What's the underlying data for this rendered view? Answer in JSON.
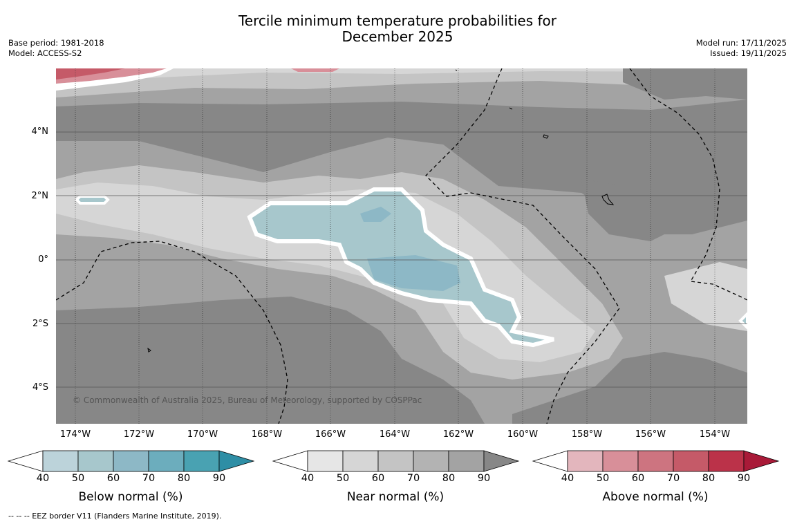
{
  "title_line1": "Tercile minimum temperature probabilities for",
  "title_line2": "December 2025",
  "meta_left": [
    "Base period: 1981-2018",
    "Model: ACCESS-S2"
  ],
  "meta_right": [
    "Model run: 17/11/2025",
    "Issued: 19/11/2025"
  ],
  "copyright": "© Commonwealth of Australia 2025, Bureau of Meteorology, supported by COSPPac",
  "footnote": "--  --  -- EEZ border V11 (Flanders Marine Institute, 2019).",
  "lat_ticks": [
    "4°N",
    "2°N",
    "0°",
    "2°S",
    "4°S"
  ],
  "lon_ticks": [
    "174°W",
    "172°W",
    "170°W",
    "168°W",
    "166°W",
    "164°W",
    "162°W",
    "160°W",
    "158°W",
    "156°W",
    "154°W"
  ],
  "colorbars": [
    {
      "title": "Below normal (%)",
      "labels": [
        "40",
        "50",
        "60",
        "70",
        "80",
        "90"
      ],
      "colors": [
        "#ffffff",
        "#bcd3da",
        "#a7c7cc",
        "#8db8c6",
        "#6cadbd",
        "#49a2b2",
        "#2e8ea5"
      ]
    },
    {
      "title": "Near normal (%)",
      "labels": [
        "40",
        "50",
        "60",
        "70",
        "80",
        "90"
      ],
      "colors": [
        "#ffffff",
        "#e6e6e6",
        "#d6d6d6",
        "#c4c4c4",
        "#b3b3b3",
        "#a3a3a3",
        "#878787"
      ]
    },
    {
      "title": "Above normal (%)",
      "labels": [
        "40",
        "50",
        "60",
        "70",
        "80",
        "90"
      ],
      "colors": [
        "#ffffff",
        "#e3b6bd",
        "#d88f99",
        "#cd7480",
        "#c55a68",
        "#bb3249",
        "#a91a38"
      ]
    }
  ]
}
